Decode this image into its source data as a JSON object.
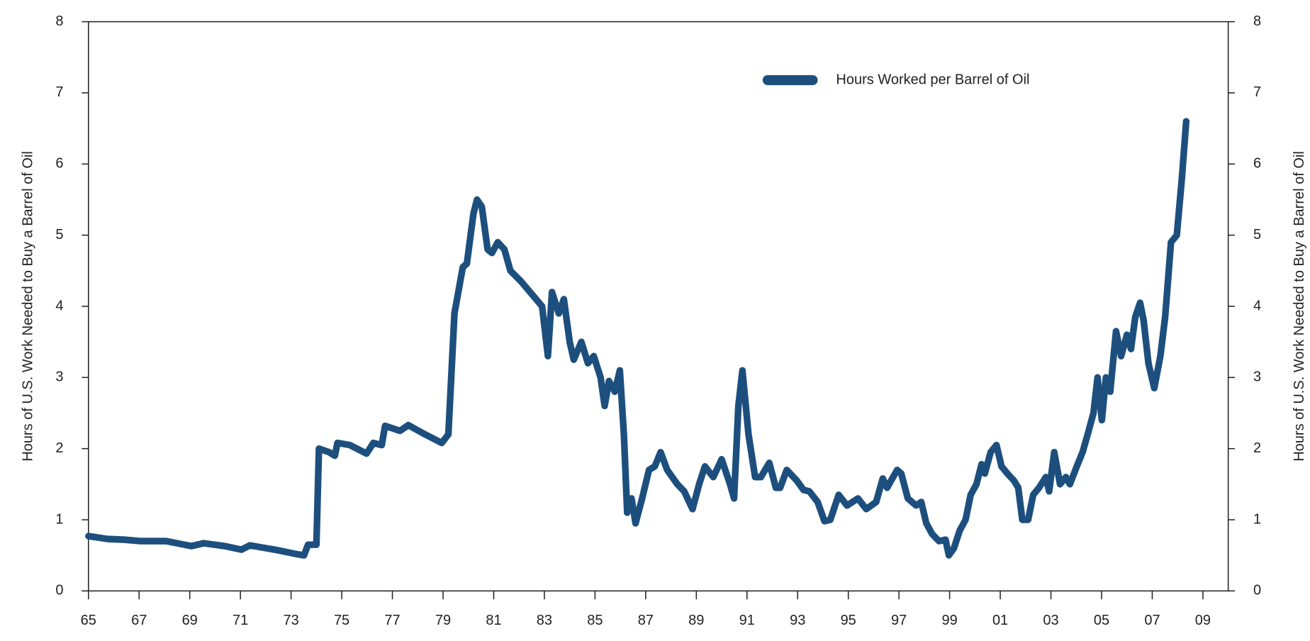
{
  "chart_data": {
    "type": "line",
    "ylabel": "Hours of U.S. Work Needed to Buy a Barrel of Oil",
    "y2label": "Hours of U.S. Work Needed to Buy a Barrel of Oil",
    "xlim": [
      1965,
      2010
    ],
    "ylim": [
      0,
      8
    ],
    "y2lim": [
      0,
      8
    ],
    "xticks": [
      {
        "value": 1965,
        "label": "65"
      },
      {
        "value": 1967,
        "label": "67"
      },
      {
        "value": 1969,
        "label": "69"
      },
      {
        "value": 1971,
        "label": "71"
      },
      {
        "value": 1973,
        "label": "73"
      },
      {
        "value": 1975,
        "label": "75"
      },
      {
        "value": 1977,
        "label": "77"
      },
      {
        "value": 1979,
        "label": "79"
      },
      {
        "value": 1981,
        "label": "81"
      },
      {
        "value": 1983,
        "label": "83"
      },
      {
        "value": 1985,
        "label": "85"
      },
      {
        "value": 1987,
        "label": "87"
      },
      {
        "value": 1989,
        "label": "89"
      },
      {
        "value": 1991,
        "label": "91"
      },
      {
        "value": 1993,
        "label": "93"
      },
      {
        "value": 1995,
        "label": "95"
      },
      {
        "value": 1997,
        "label": "97"
      },
      {
        "value": 1999,
        "label": "99"
      },
      {
        "value": 2001,
        "label": "01"
      },
      {
        "value": 2003,
        "label": "03"
      },
      {
        "value": 2005,
        "label": "05"
      },
      {
        "value": 2007,
        "label": "07"
      },
      {
        "value": 2009,
        "label": "09"
      }
    ],
    "yticks": [
      0,
      1,
      2,
      3,
      4,
      5,
      6,
      7,
      8
    ],
    "y2ticks": [
      0,
      1,
      2,
      3,
      4,
      5,
      6,
      7,
      8
    ],
    "legend": "upper right",
    "x": [
      1965.0,
      1965.76,
      1966.42,
      1967.08,
      1968.07,
      1969.06,
      1969.55,
      1970.38,
      1971.04,
      1971.37,
      1972.35,
      1973.18,
      1973.51,
      1973.67,
      1974.0,
      1974.1,
      1974.5,
      1974.73,
      1974.83,
      1975.32,
      1975.98,
      1976.25,
      1976.58,
      1976.71,
      1977.3,
      1977.63,
      1978.29,
      1978.95,
      1979.21,
      1979.45,
      1979.78,
      1979.94,
      1980.2,
      1980.34,
      1980.53,
      1980.76,
      1980.93,
      1981.16,
      1981.42,
      1981.66,
      1982.08,
      1982.91,
      1983.14,
      1983.3,
      1983.57,
      1983.77,
      1984.0,
      1984.16,
      1984.46,
      1984.72,
      1984.95,
      1985.22,
      1985.38,
      1985.55,
      1985.78,
      1985.98,
      1986.14,
      1986.27,
      1986.44,
      1986.6,
      1986.86,
      1987.13,
      1987.36,
      1987.59,
      1987.85,
      1988.25,
      1988.52,
      1988.85,
      1989.11,
      1989.34,
      1989.67,
      1990.0,
      1990.33,
      1990.49,
      1990.66,
      1990.82,
      1991.06,
      1991.32,
      1991.55,
      1991.88,
      1992.14,
      1992.31,
      1992.57,
      1992.97,
      1993.23,
      1993.46,
      1993.79,
      1994.06,
      1994.29,
      1994.62,
      1994.95,
      1995.38,
      1995.71,
      1996.1,
      1996.36,
      1996.53,
      1996.93,
      1997.09,
      1997.35,
      1997.68,
      1997.88,
      1998.08,
      1998.31,
      1998.58,
      1998.84,
      1998.97,
      1999.17,
      1999.4,
      1999.63,
      1999.83,
      2000.06,
      2000.26,
      2000.39,
      2000.62,
      2000.85,
      2001.05,
      2001.28,
      2001.54,
      2001.71,
      2001.87,
      2002.1,
      2002.3,
      2002.53,
      2002.8,
      2002.93,
      2003.13,
      2003.36,
      2003.59,
      2003.75,
      2004.02,
      2004.25,
      2004.45,
      2004.68,
      2004.84,
      2005.01,
      2005.17,
      2005.34,
      2005.57,
      2005.77,
      2006.0,
      2006.16,
      2006.33,
      2006.52,
      2006.66,
      2006.85,
      2007.08,
      2007.32,
      2007.51,
      2007.74,
      2007.97,
      2008.17,
      2008.34
    ],
    "series": [
      {
        "name": "Hours Worked per Barrel of Oil",
        "color": "#1d4f7e",
        "values": [
          0.77,
          0.73,
          0.72,
          0.7,
          0.7,
          0.63,
          0.67,
          0.63,
          0.58,
          0.64,
          0.58,
          0.52,
          0.5,
          0.65,
          0.65,
          2.0,
          1.95,
          1.9,
          2.08,
          2.05,
          1.93,
          2.08,
          2.05,
          2.32,
          2.25,
          2.33,
          2.2,
          2.08,
          2.2,
          3.9,
          4.55,
          4.6,
          5.3,
          5.5,
          5.4,
          4.8,
          4.75,
          4.9,
          4.8,
          4.5,
          4.35,
          4.0,
          3.3,
          4.2,
          3.9,
          4.1,
          3.5,
          3.25,
          3.5,
          3.2,
          3.3,
          3.0,
          2.6,
          2.95,
          2.8,
          3.1,
          2.2,
          1.1,
          1.3,
          0.95,
          1.3,
          1.7,
          1.75,
          1.95,
          1.7,
          1.5,
          1.4,
          1.15,
          1.5,
          1.75,
          1.6,
          1.85,
          1.5,
          1.3,
          2.6,
          3.1,
          2.2,
          1.6,
          1.6,
          1.8,
          1.45,
          1.45,
          1.7,
          1.55,
          1.42,
          1.4,
          1.25,
          0.98,
          1.0,
          1.35,
          1.2,
          1.3,
          1.15,
          1.25,
          1.58,
          1.45,
          1.7,
          1.65,
          1.3,
          1.2,
          1.25,
          0.95,
          0.8,
          0.7,
          0.72,
          0.5,
          0.6,
          0.85,
          1.0,
          1.35,
          1.5,
          1.78,
          1.65,
          1.95,
          2.05,
          1.75,
          1.65,
          1.55,
          1.45,
          1.0,
          1.0,
          1.35,
          1.45,
          1.6,
          1.4,
          1.95,
          1.5,
          1.6,
          1.5,
          1.75,
          1.95,
          2.2,
          2.5,
          3.0,
          2.4,
          3.0,
          2.8,
          3.65,
          3.3,
          3.6,
          3.4,
          3.85,
          4.05,
          3.8,
          3.2,
          2.85,
          3.3,
          3.85,
          4.9,
          5.0,
          5.8,
          6.6
        ]
      }
    ]
  }
}
